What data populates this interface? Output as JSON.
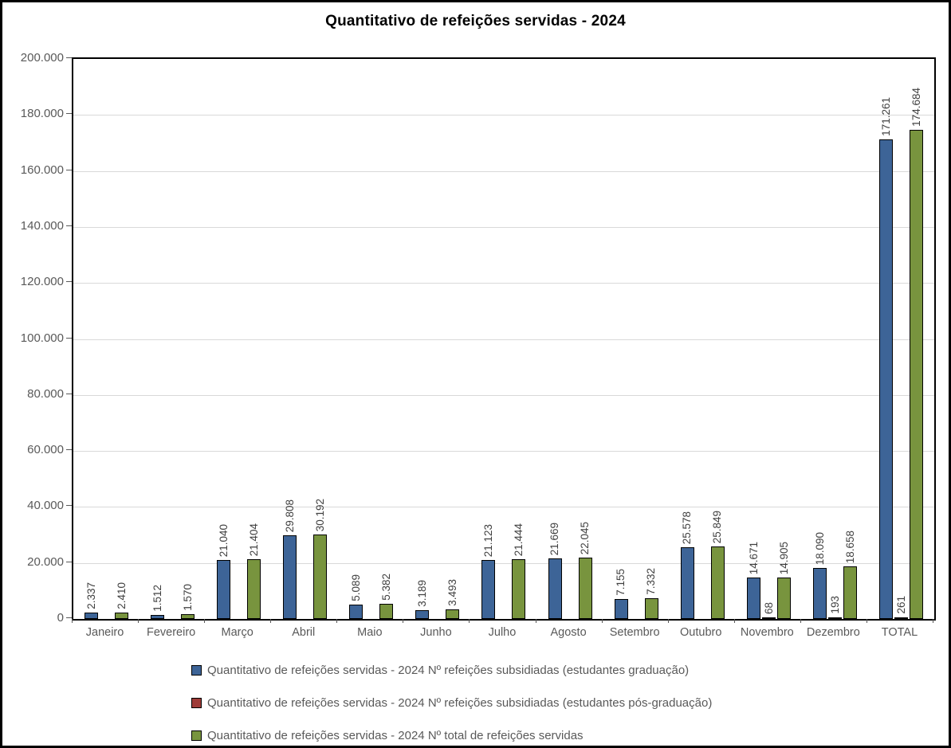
{
  "title": "Quantitativo de refeições servidas - 2024",
  "colors": {
    "series_graduacao": "#3d6497",
    "series_pos_graduacao": "#9e3b38",
    "series_total": "#78943e",
    "bar_border": "#000000",
    "gridline": "#d9d9d9",
    "axis_text": "#595959",
    "value_label_text": "#404040",
    "title_text": "#000000",
    "frame_border": "#000000"
  },
  "chart_data": {
    "type": "bar",
    "title": "Quantitativo de refeições servidas - 2024",
    "categories": [
      "Janeiro",
      "Fevereiro",
      "Março",
      "Abril",
      "Maio",
      "Junho",
      "Julho",
      "Agosto",
      "Setembro",
      "Outubro",
      "Novembro",
      "Dezembro",
      "TOTAL"
    ],
    "series": [
      {
        "name": "Quantitativo de refeições servidas - 2024 Nº refeições subsidiadas (estudantes graduação)",
        "color": "#3d6497",
        "values": [
          2337,
          1512,
          21040,
          29808,
          5089,
          3189,
          21123,
          21669,
          7155,
          25578,
          14671,
          18090,
          171261
        ],
        "labels": [
          "2.337",
          "1.512",
          "21.040",
          "29.808",
          "5.089",
          "3.189",
          "21.123",
          "21.669",
          "7.155",
          "25.578",
          "14.671",
          "18.090",
          "171.261"
        ]
      },
      {
        "name": "Quantitativo de refeições servidas - 2024 Nº refeições subsidiadas (estudantes pós-graduação)",
        "color": "#9e3b38",
        "values": [
          null,
          null,
          null,
          null,
          null,
          null,
          null,
          null,
          null,
          null,
          68,
          193,
          261
        ],
        "labels": [
          "",
          "",
          "",
          "",
          "",
          "",
          "",
          "",
          "",
          "",
          "68",
          "193",
          "261"
        ]
      },
      {
        "name": "Quantitativo de refeições servidas - 2024 Nº total de refeições servidas",
        "color": "#78943e",
        "values": [
          2410,
          1570,
          21404,
          30192,
          5382,
          3493,
          21444,
          22045,
          7332,
          25849,
          14905,
          18658,
          174684
        ],
        "labels": [
          "2.410",
          "1.570",
          "21.404",
          "30.192",
          "5.382",
          "3.493",
          "21.444",
          "22.045",
          "7.332",
          "25.849",
          "14.905",
          "18.658",
          "174.684"
        ]
      }
    ],
    "ylim": [
      0,
      200000
    ],
    "ytick_step": 20000,
    "ytick_labels": [
      "0",
      "20.000",
      "40.000",
      "60.000",
      "80.000",
      "100.000",
      "120.000",
      "140.000",
      "160.000",
      "180.000",
      "200.000"
    ],
    "grid": true,
    "legend_position": "bottom",
    "data_labels_orientation": "rotated-90"
  }
}
